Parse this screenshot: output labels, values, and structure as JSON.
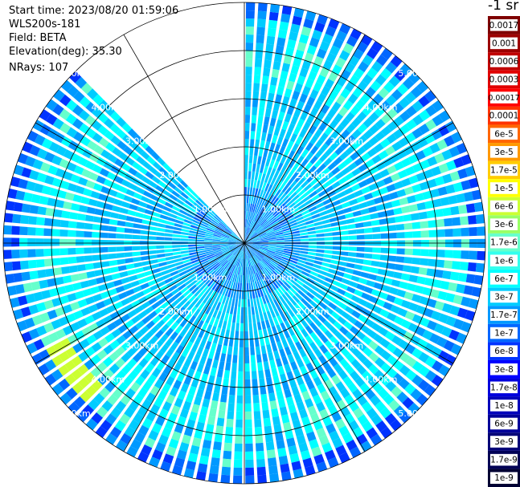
{
  "header": {
    "start_time": "Start time: 2023/08/20 01:59:06",
    "instrument": "WLS200s-181",
    "field": "Field: BETA",
    "elevation": "Elevation(deg): 35.30",
    "nrays": "NRays: 107"
  },
  "colorbar": {
    "title": "-1 sr",
    "labels": [
      "0.0017",
      "0.001",
      "0.0006",
      "0.0003",
      "0.00017",
      "0.0001",
      "6e-5",
      "3e-5",
      "1.7e-5",
      "1e-5",
      "6e-6",
      "3e-6",
      "1.7e-6",
      "1e-6",
      "6e-7",
      "3e-7",
      "1.7e-7",
      "1e-7",
      "6e-8",
      "3e-8",
      "1.7e-8",
      "1e-8",
      "6e-9",
      "3e-9",
      "1.7e-9",
      "1e-9"
    ],
    "colors": [
      "#7f0000",
      "#9c0000",
      "#c00000",
      "#e00000",
      "#ff0000",
      "#ff3300",
      "#ff6600",
      "#ff9900",
      "#ffcc00",
      "#ffff00",
      "#ccff33",
      "#99ff66",
      "#66ffcc",
      "#33ffee",
      "#00ffff",
      "#00ccff",
      "#0099ff",
      "#0066ff",
      "#0033ff",
      "#0000ff",
      "#0000dd",
      "#0000bb",
      "#000099",
      "#000077",
      "#000055",
      "#000033"
    ]
  },
  "chart_data": {
    "type": "ppi",
    "field": "BETA",
    "units": "-1 sr",
    "elevation_deg": 35.3,
    "nrays": 107,
    "range_rings_km": [
      1,
      2,
      3,
      4,
      5
    ],
    "ring_labels": [
      "1.00km",
      "2.00km",
      "3.00km",
      "4.00km",
      "5.00km"
    ],
    "max_range_km": 5.0,
    "azimuth_gap_deg": [
      -44,
      0
    ],
    "data_summary": "Backscatter mostly 1.7e-7 to 1e-6 (cyan) near the radar, rising to about 3e-7 to 1.7e-6 around 3.5-4.5 km, with a band of 1e-5 (yellow) at 4.2-4.6 km between azimuths 225 and 243 deg; outer gates near 5 km fall to 1e-8 to 1e-7 (blue)."
  }
}
